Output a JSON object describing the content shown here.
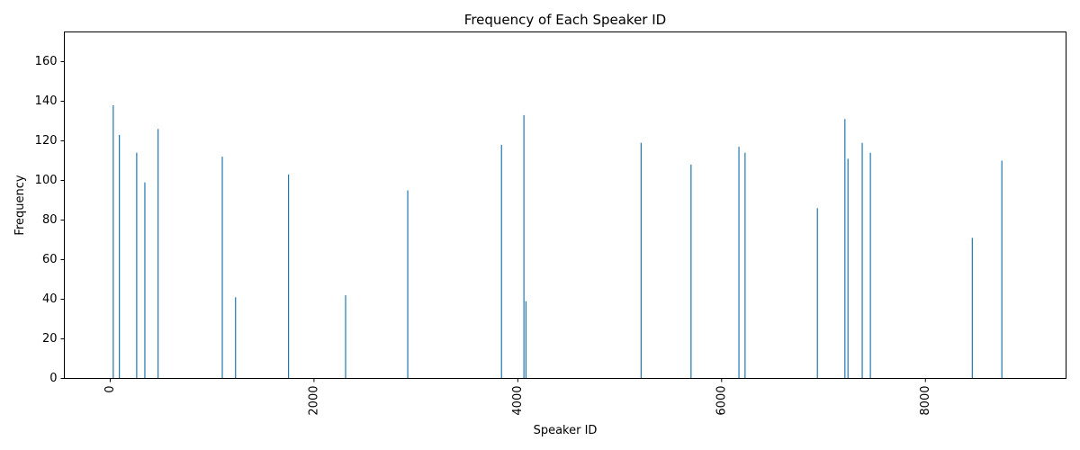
{
  "chart_data": {
    "type": "bar",
    "title": "Frequency of Each Speaker ID",
    "xlabel": "Speaker ID",
    "ylabel": "Frequency",
    "xlim": [
      -450,
      9380
    ],
    "ylim": [
      0,
      175
    ],
    "x_ticks": [
      0,
      2000,
      4000,
      6000,
      8000
    ],
    "y_ticks": [
      0,
      20,
      40,
      60,
      80,
      100,
      120,
      140,
      160
    ],
    "bar_color": "#1f77b4",
    "grid": false,
    "legend": "none",
    "x": [
      30,
      90,
      260,
      340,
      470,
      1100,
      1230,
      1750,
      2310,
      2920,
      3840,
      4060,
      4080,
      5210,
      5700,
      6170,
      6230,
      6940,
      7210,
      7240,
      7380,
      7460,
      8460,
      8750
    ],
    "values": [
      138,
      123,
      114,
      99,
      126,
      112,
      41,
      103,
      42,
      95,
      118,
      133,
      39,
      119,
      108,
      117,
      114,
      86,
      131,
      111,
      119,
      114,
      71,
      110
    ]
  }
}
